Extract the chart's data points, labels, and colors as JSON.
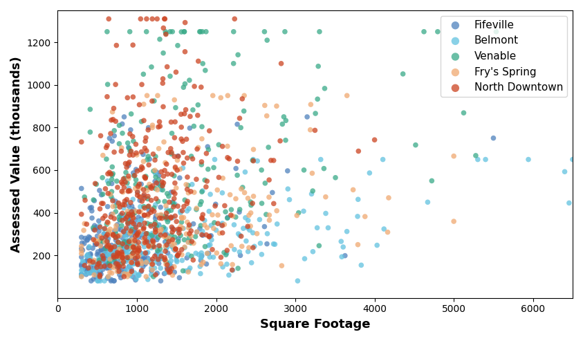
{
  "title": "",
  "xlabel": "Square Footage",
  "ylabel": "Assessed Value (thousands)",
  "xlim": [
    0,
    6500
  ],
  "ylim": [
    0,
    1350
  ],
  "xticks": [
    0,
    1000,
    2000,
    3000,
    4000,
    5000,
    6000
  ],
  "yticks": [
    200,
    400,
    600,
    800,
    1000,
    1200
  ],
  "neighborhoods": [
    {
      "name": "Fifeville",
      "color": "#4f82bd",
      "sqft_mean": 6.7,
      "sqft_std": 0.55,
      "val_mean": 5.5,
      "val_std": 0.55,
      "n": 280,
      "sqft_min": 300,
      "sqft_max": 5500,
      "val_min": 80,
      "val_max": 850
    },
    {
      "name": "Belmont",
      "color": "#62c2e0",
      "sqft_mean": 7.1,
      "sqft_std": 0.65,
      "val_mean": 5.4,
      "val_std": 0.45,
      "n": 280,
      "sqft_min": 300,
      "sqft_max": 6500,
      "val_min": 80,
      "val_max": 650
    },
    {
      "name": "Venable",
      "color": "#3aaa88",
      "sqft_mean": 7.2,
      "sqft_std": 0.55,
      "val_mean": 6.2,
      "val_std": 0.55,
      "n": 220,
      "sqft_min": 300,
      "sqft_max": 6500,
      "val_min": 100,
      "val_max": 1250
    },
    {
      "name": "Fry's Spring",
      "color": "#f0a870",
      "sqft_mean": 7.1,
      "sqft_std": 0.6,
      "val_mean": 5.8,
      "val_std": 0.55,
      "n": 200,
      "sqft_min": 300,
      "sqft_max": 5000,
      "val_min": 100,
      "val_max": 950
    },
    {
      "name": "North Downtown",
      "color": "#cc4422",
      "sqft_mean": 7.0,
      "sqft_std": 0.45,
      "val_mean": 6.0,
      "val_std": 0.6,
      "n": 380,
      "sqft_min": 300,
      "sqft_max": 4000,
      "val_min": 100,
      "val_max": 1310
    }
  ],
  "marker_size": 30,
  "alpha": 0.75,
  "figsize": [
    8.43,
    4.93
  ],
  "dpi": 100
}
